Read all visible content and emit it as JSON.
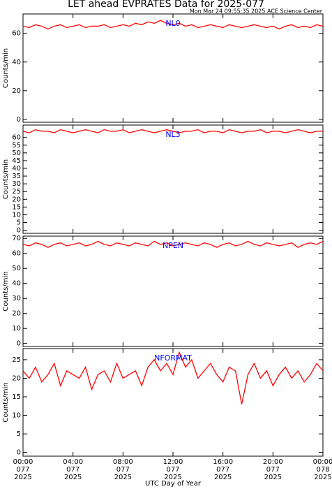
{
  "title": "LET ahead EVPRATES Data for 2025-077",
  "subtitle": "Mon Mar 24 09:55:35 2025 ACE Science Center",
  "chart_data": [
    {
      "type": "line",
      "ylabel": "Counts/min",
      "x": [
        0,
        0.5,
        1,
        1.5,
        2,
        2.5,
        3,
        3.5,
        4,
        4.5,
        5,
        5.5,
        6,
        6.5,
        7,
        7.5,
        8,
        8.5,
        9,
        9.5,
        10,
        10.5,
        11,
        11.5,
        12,
        12.5,
        13,
        13.5,
        14,
        14.5,
        15,
        15.5,
        16,
        16.5,
        17,
        17.5,
        18,
        18.5,
        19,
        19.5,
        20,
        20.5,
        21,
        21.5,
        22,
        22.5,
        23,
        23.5,
        24
      ],
      "series": [
        {
          "name": "NL0",
          "color": "#ff0000",
          "values": [
            65,
            64,
            66,
            65,
            63,
            65,
            66,
            64,
            65,
            66,
            64,
            65,
            65,
            66,
            64,
            65,
            66,
            65,
            67,
            66,
            68,
            67,
            69,
            67,
            66,
            67,
            65,
            66,
            64,
            65,
            66,
            65,
            64,
            66,
            65,
            64,
            65,
            66,
            65,
            64,
            65,
            63,
            65,
            66,
            64,
            65,
            64,
            66,
            65
          ]
        }
      ],
      "xlim": [
        0,
        24
      ],
      "xticks": [
        0,
        4,
        8,
        12,
        16,
        20,
        24
      ],
      "ylim": [
        -2,
        73.5
      ],
      "yticks": [
        0,
        20,
        40,
        60
      ]
    },
    {
      "type": "line",
      "ylabel": "Counts/min",
      "x": [
        0,
        0.5,
        1,
        1.5,
        2,
        2.5,
        3,
        3.5,
        4,
        4.5,
        5,
        5.5,
        6,
        6.5,
        7,
        7.5,
        8,
        8.5,
        9,
        9.5,
        10,
        10.5,
        11,
        11.5,
        12,
        12.5,
        13,
        13.5,
        14,
        14.5,
        15,
        15.5,
        16,
        16.5,
        17,
        17.5,
        18,
        18.5,
        19,
        19.5,
        20,
        20.5,
        21,
        21.5,
        22,
        22.5,
        23,
        23.5,
        24
      ],
      "series": [
        {
          "name": "NL3",
          "color": "#ff0000",
          "values": [
            64,
            63,
            65,
            64,
            64,
            63,
            65,
            64,
            63,
            64,
            65,
            64,
            63,
            65,
            64,
            64,
            65,
            63,
            64,
            65,
            64,
            63,
            64,
            65,
            64,
            63,
            64,
            64,
            65,
            63,
            64,
            64,
            63,
            65,
            64,
            63,
            64,
            64,
            65,
            63,
            64,
            64,
            63,
            64,
            65,
            64,
            63,
            64,
            64
          ]
        }
      ],
      "xlim": [
        0,
        24
      ],
      "xticks": [
        0,
        4,
        8,
        12,
        16,
        20,
        24
      ],
      "ylim": [
        -2,
        68
      ],
      "yticks": [
        0,
        5,
        10,
        15,
        20,
        25,
        30,
        35,
        40,
        45,
        50,
        55,
        60
      ]
    },
    {
      "type": "line",
      "ylabel": "Counts/min",
      "x": [
        0,
        0.5,
        1,
        1.5,
        2,
        2.5,
        3,
        3.5,
        4,
        4.5,
        5,
        5.5,
        6,
        6.5,
        7,
        7.5,
        8,
        8.5,
        9,
        9.5,
        10,
        10.5,
        11,
        11.5,
        12,
        12.5,
        13,
        13.5,
        14,
        14.5,
        15,
        15.5,
        16,
        16.5,
        17,
        17.5,
        18,
        18.5,
        19,
        19.5,
        20,
        20.5,
        21,
        21.5,
        22,
        22.5,
        23,
        23.5,
        24
      ],
      "series": [
        {
          "name": "NPEN",
          "color": "#ff0000",
          "values": [
            66,
            65,
            67,
            66,
            64,
            66,
            67,
            65,
            66,
            67,
            65,
            66,
            68,
            66,
            65,
            67,
            66,
            65,
            67,
            66,
            65,
            68,
            66,
            67,
            65,
            66,
            67,
            66,
            65,
            67,
            66,
            64,
            66,
            67,
            65,
            66,
            68,
            66,
            65,
            67,
            66,
            65,
            66,
            67,
            64,
            66,
            67,
            66,
            68
          ]
        }
      ],
      "xlim": [
        0,
        24
      ],
      "xticks": [
        0,
        4,
        8,
        12,
        16,
        20,
        24
      ],
      "ylim": [
        -2,
        71.5
      ],
      "yticks": [
        0,
        10,
        20,
        30,
        40,
        50,
        60,
        70
      ]
    },
    {
      "type": "line",
      "ylabel": "Counts/min",
      "xlabel": "UTC Day of Year",
      "x": [
        0,
        0.5,
        1,
        1.5,
        2,
        2.5,
        3,
        3.5,
        4,
        4.5,
        5,
        5.5,
        6,
        6.5,
        7,
        7.5,
        8,
        8.5,
        9,
        9.5,
        10,
        10.5,
        11,
        11.5,
        12,
        12.5,
        13,
        13.5,
        14,
        14.5,
        15,
        15.5,
        16,
        16.5,
        17,
        17.5,
        18,
        18.5,
        19,
        19.5,
        20,
        20.5,
        21,
        21.5,
        22,
        22.5,
        23,
        23.5,
        24
      ],
      "series": [
        {
          "name": "NFORMAT",
          "color": "#ff0000",
          "values": [
            22,
            20,
            23,
            19,
            21,
            24,
            18,
            22,
            21,
            20,
            23,
            17,
            21,
            22,
            19,
            24,
            20,
            21,
            22,
            18,
            23,
            25,
            22,
            24,
            21,
            27,
            23,
            25,
            20,
            22,
            24,
            21,
            19,
            23,
            22,
            13,
            21,
            24,
            20,
            22,
            18,
            21,
            23,
            20,
            22,
            19,
            21,
            24,
            22
          ]
        }
      ],
      "xlim": [
        0,
        24
      ],
      "xticks": [
        {
          "value": 0,
          "label": [
            "00:00",
            "077",
            "2025"
          ]
        },
        {
          "value": 4,
          "label": [
            "04:00",
            "077",
            "2025"
          ]
        },
        {
          "value": 8,
          "label": [
            "08:00",
            "077",
            "2025"
          ]
        },
        {
          "value": 12,
          "label": [
            "12:00",
            "077",
            "2025"
          ]
        },
        {
          "value": 16,
          "label": [
            "16:00",
            "077",
            "2025"
          ]
        },
        {
          "value": 20,
          "label": [
            "20:00",
            "077",
            "2025"
          ]
        },
        {
          "value": 24,
          "label": [
            "00:00",
            "078",
            "2025"
          ]
        }
      ],
      "ylim": [
        -1,
        28
      ],
      "yticks": [
        0,
        5,
        10,
        15,
        20,
        25
      ]
    }
  ]
}
